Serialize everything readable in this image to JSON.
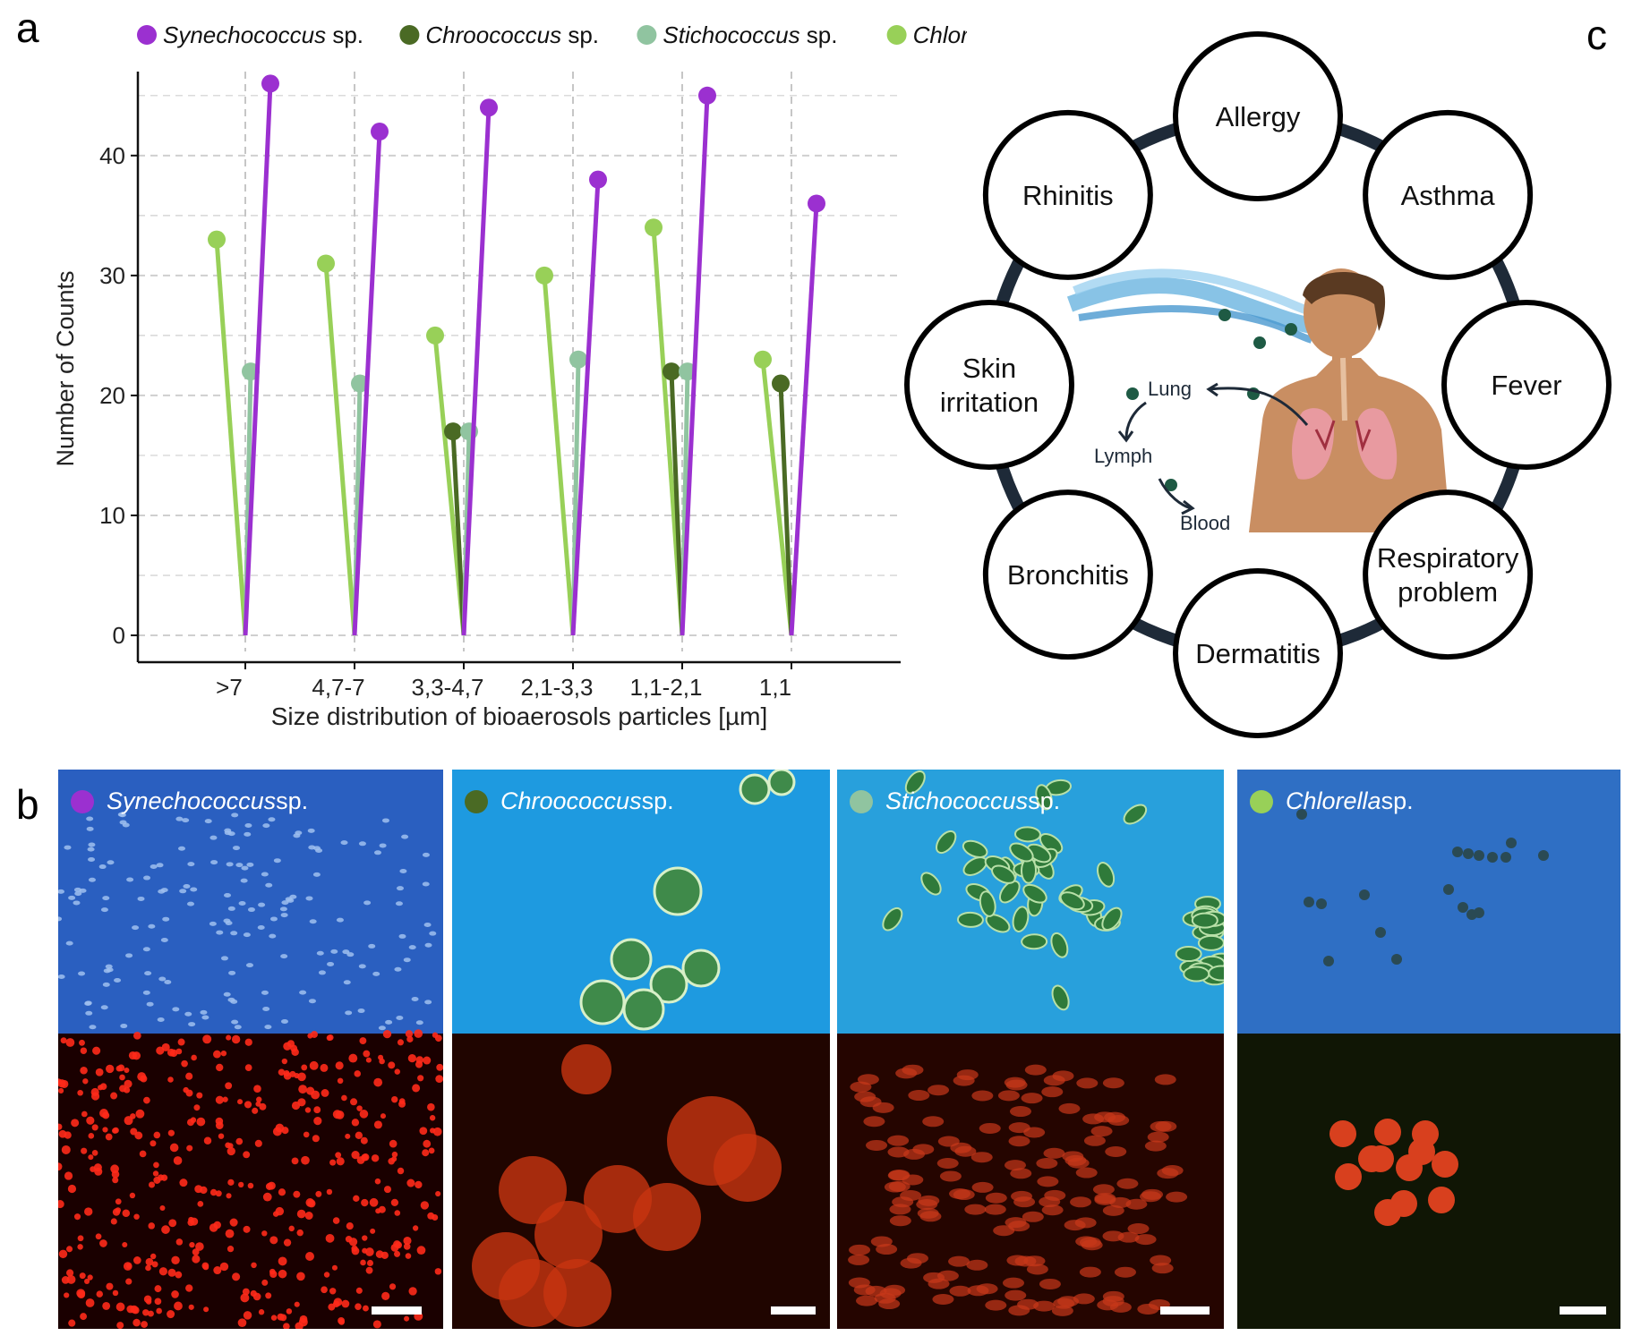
{
  "panel_letters": {
    "a": "a",
    "b": "b",
    "c": "c"
  },
  "legend": [
    {
      "genus": "Synechococcus",
      "suffix": " sp.",
      "color": "#9b30d0"
    },
    {
      "genus": "Chroococcus",
      "suffix": " sp.",
      "color": "#4a6a24"
    },
    {
      "genus": "Stichococcus",
      "suffix": " sp.",
      "color": "#90c4a0"
    },
    {
      "genus": "Chlorella",
      "suffix": " sp.",
      "color": "#98d058"
    }
  ],
  "chart_data": {
    "type": "lollipop",
    "xlabel": "Size distribution of bioaerosols particles [µm]",
    "ylabel": "Number of Counts",
    "categories": [
      ">7",
      "4,7-7",
      "3,3-4,7",
      "2,1-3,3",
      "1,1-2,1",
      "1,1"
    ],
    "ylim": [
      0,
      47
    ],
    "yticks": [
      0,
      10,
      20,
      30,
      40
    ],
    "grid": true,
    "legend_position": "top",
    "series": [
      {
        "name": "Chlorella sp.",
        "color": "#98d058",
        "values": [
          33,
          31,
          25,
          30,
          34,
          23
        ]
      },
      {
        "name": "Chroococcus sp.",
        "color": "#4a6a24",
        "values": [
          null,
          null,
          17,
          null,
          22,
          21
        ]
      },
      {
        "name": "Stichococcus sp.",
        "color": "#90c4a0",
        "values": [
          22,
          21,
          17,
          23,
          22,
          null
        ]
      },
      {
        "name": "Synechococcus sp.",
        "color": "#9b30d0",
        "values": [
          46,
          42,
          44,
          38,
          45,
          36
        ]
      }
    ]
  },
  "diagram": {
    "circles": [
      "Allergy",
      "Asthma",
      "Fever",
      "Respiratory problem",
      "Dermatitis",
      "Bronchitis",
      "Skin irritation",
      "Rhinitis"
    ],
    "pathway": {
      "lung": "Lung",
      "lymph": "Lymph",
      "blood": "Blood"
    },
    "colors": {
      "ring": "#1e2a38",
      "skin": "#c98e62",
      "lungs": "#e89aa0",
      "air": "#6ab4e0"
    }
  },
  "micrographs": [
    {
      "genus": "Synechococcus",
      "suffix": " sp.",
      "dot": "#9b30d0",
      "top_bg": "#2a5fc0",
      "bottom_bg": "#1a0000"
    },
    {
      "genus": "Chroococcus",
      "suffix": " sp.",
      "dot": "#4a6a24",
      "top_bg": "#1e9ae0",
      "bottom_bg": "#200500"
    },
    {
      "genus": "Stichococcus",
      "suffix": " sp.",
      "dot": "#90c4a0",
      "top_bg": "#28a0dc",
      "bottom_bg": "#250500"
    },
    {
      "genus": "Chlorella",
      "suffix": " sp.",
      "dot": "#98d058",
      "top_bg": "#2f6fc4",
      "bottom_bg": "#101605"
    }
  ]
}
